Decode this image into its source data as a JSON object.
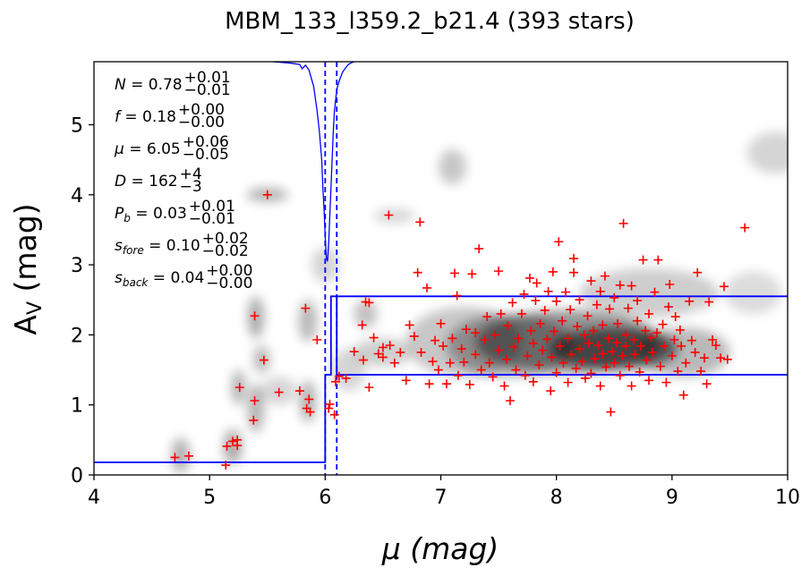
{
  "chart_data": {
    "type": "scatter",
    "title": "MBM_133_l359.2_b21.4 (393 stars)",
    "xlabel": "μ (mag)",
    "ylabel_main": "A",
    "ylabel_sub": "V",
    "ylabel_unit": " (mag)",
    "xlim": [
      4,
      10
    ],
    "ylim": [
      0,
      5.9
    ],
    "xticks": [
      "4",
      "5",
      "6",
      "7",
      "8",
      "9",
      "10"
    ],
    "yticks": [
      "0",
      "1",
      "2",
      "3",
      "4",
      "5"
    ],
    "annotations": [
      {
        "name": "N",
        "base": "N = 0.78",
        "sup": "+0.01",
        "sub": "−0.01"
      },
      {
        "name": "f",
        "base": "f = 0.18",
        "sup": "+0.00",
        "sub": "−0.00"
      },
      {
        "name": "mu",
        "base": "μ = 6.05",
        "sup": "+0.06",
        "sub": "−0.05"
      },
      {
        "name": "D",
        "base": "D = 162",
        "sup": "+4",
        "sub": "−3"
      },
      {
        "name": "Pb",
        "base": "P",
        "base_sub": "b",
        "base_rest": " = 0.03",
        "sup": "+0.01",
        "sub": "−0.01"
      },
      {
        "name": "sfore",
        "base": "s",
        "base_sub": "fore",
        "base_rest": " = 0.10",
        "sup": "+0.02",
        "sub": "−0.02"
      },
      {
        "name": "sback",
        "base": "s",
        "base_sub": "back",
        "base_rest": " = 0.04",
        "sup": "+0.00",
        "sub": "−0.00"
      }
    ],
    "model_line": {
      "color": "#0000ff",
      "x": [
        4.0,
        6.0,
        6.0,
        6.05,
        6.05,
        6.1,
        6.1,
        10.0
      ],
      "y": [
        0.18,
        0.18,
        1.43,
        1.43,
        2.55,
        2.55,
        1.43,
        1.43
      ],
      "upper_x": [
        6.1,
        10.0
      ],
      "upper_y": [
        2.55,
        2.55
      ]
    },
    "mu_bounds": {
      "color": "#0000ff",
      "x": [
        6.0,
        6.1
      ]
    },
    "posterior_curve": {
      "color": "#0000ff",
      "x": [
        5.55,
        5.7,
        5.78,
        5.8,
        5.83,
        5.86,
        5.9,
        5.93,
        5.95,
        5.97,
        5.98,
        5.99,
        6.0,
        6.01,
        6.02,
        6.03,
        6.04,
        6.05,
        6.06,
        6.07,
        6.08,
        6.09,
        6.1,
        6.12,
        6.15,
        6.18,
        6.2,
        6.22,
        6.25
      ],
      "y": [
        5.9,
        5.88,
        5.86,
        5.8,
        5.85,
        5.78,
        5.55,
        5.2,
        4.9,
        4.5,
        4.1,
        3.8,
        3.4,
        3.1,
        3.05,
        3.3,
        3.7,
        4.1,
        4.5,
        4.9,
        5.2,
        5.35,
        5.5,
        5.62,
        5.75,
        5.82,
        5.86,
        5.88,
        5.9
      ]
    },
    "density_blobs": [
      {
        "x": 8.5,
        "y": 1.8,
        "sx": 0.55,
        "sy": 0.3,
        "w": 1.0
      },
      {
        "x": 8.1,
        "y": 1.9,
        "sx": 0.8,
        "sy": 0.45,
        "w": 0.75
      },
      {
        "x": 7.6,
        "y": 1.85,
        "sx": 0.55,
        "sy": 0.45,
        "w": 0.55
      },
      {
        "x": 7.2,
        "y": 1.9,
        "sx": 0.5,
        "sy": 0.5,
        "w": 0.4
      },
      {
        "x": 9.1,
        "y": 1.75,
        "sx": 0.4,
        "sy": 0.35,
        "w": 0.5
      },
      {
        "x": 8.8,
        "y": 2.6,
        "sx": 0.6,
        "sy": 0.35,
        "w": 0.35
      },
      {
        "x": 9.7,
        "y": 2.6,
        "sx": 0.25,
        "sy": 0.3,
        "w": 0.25
      },
      {
        "x": 9.9,
        "y": 4.6,
        "sx": 0.25,
        "sy": 0.3,
        "w": 0.3
      },
      {
        "x": 7.1,
        "y": 4.4,
        "sx": 0.12,
        "sy": 0.25,
        "w": 0.4
      },
      {
        "x": 5.5,
        "y": 4.0,
        "sx": 0.18,
        "sy": 0.1,
        "w": 0.55
      },
      {
        "x": 6.6,
        "y": 3.7,
        "sx": 0.18,
        "sy": 0.1,
        "w": 0.3
      },
      {
        "x": 6.35,
        "y": 2.3,
        "sx": 0.1,
        "sy": 0.2,
        "w": 0.45
      },
      {
        "x": 6.5,
        "y": 1.75,
        "sx": 0.25,
        "sy": 0.2,
        "w": 0.35
      },
      {
        "x": 5.4,
        "y": 2.25,
        "sx": 0.07,
        "sy": 0.3,
        "w": 0.6
      },
      {
        "x": 5.45,
        "y": 1.65,
        "sx": 0.07,
        "sy": 0.2,
        "w": 0.5
      },
      {
        "x": 5.85,
        "y": 2.2,
        "sx": 0.08,
        "sy": 0.3,
        "w": 0.5
      },
      {
        "x": 5.25,
        "y": 1.25,
        "sx": 0.06,
        "sy": 0.25,
        "w": 0.55
      },
      {
        "x": 5.4,
        "y": 0.95,
        "sx": 0.07,
        "sy": 0.35,
        "w": 0.55
      },
      {
        "x": 5.85,
        "y": 1.05,
        "sx": 0.07,
        "sy": 0.3,
        "w": 0.55
      },
      {
        "x": 5.2,
        "y": 0.4,
        "sx": 0.08,
        "sy": 0.25,
        "w": 0.6
      },
      {
        "x": 4.75,
        "y": 0.28,
        "sx": 0.08,
        "sy": 0.25,
        "w": 0.55
      },
      {
        "x": 5.6,
        "y": 1.2,
        "sx": 0.15,
        "sy": 0.2,
        "w": 0.3
      },
      {
        "x": 6.2,
        "y": 1.5,
        "sx": 0.15,
        "sy": 0.3,
        "w": 0.3
      },
      {
        "x": 6.0,
        "y": 3.0,
        "sx": 0.12,
        "sy": 0.25,
        "w": 0.3
      }
    ],
    "stars_color": "#ff0000",
    "stars": [
      [
        4.7,
        0.25
      ],
      [
        4.82,
        0.27
      ],
      [
        5.14,
        0.14
      ],
      [
        5.15,
        0.41
      ],
      [
        5.2,
        0.48
      ],
      [
        5.24,
        0.42
      ],
      [
        5.26,
        1.25
      ],
      [
        5.24,
        0.5
      ],
      [
        5.38,
        0.78
      ],
      [
        5.39,
        1.06
      ],
      [
        5.39,
        2.27
      ],
      [
        5.47,
        1.64
      ],
      [
        5.5,
        4.0
      ],
      [
        5.6,
        1.18
      ],
      [
        5.78,
        1.2
      ],
      [
        5.83,
        2.38
      ],
      [
        5.86,
        1.08
      ],
      [
        5.84,
        0.95
      ],
      [
        5.87,
        0.9
      ],
      [
        5.93,
        1.93
      ],
      [
        6.03,
        0.95
      ],
      [
        6.04,
        1.01
      ],
      [
        6.08,
        0.86
      ],
      [
        6.09,
        1.33
      ],
      [
        6.12,
        1.41
      ],
      [
        6.18,
        1.38
      ],
      [
        6.25,
        1.76
      ],
      [
        6.33,
        1.64
      ],
      [
        6.32,
        2.14
      ],
      [
        6.35,
        2.47
      ],
      [
        6.38,
        2.46
      ],
      [
        6.38,
        1.25
      ],
      [
        6.42,
        1.96
      ],
      [
        6.46,
        1.73
      ],
      [
        6.5,
        1.82
      ],
      [
        6.5,
        1.68
      ],
      [
        6.55,
        3.71
      ],
      [
        6.56,
        1.85
      ],
      [
        6.6,
        1.6
      ],
      [
        6.65,
        1.75
      ],
      [
        6.7,
        1.35
      ],
      [
        6.73,
        2.14
      ],
      [
        6.77,
        1.98
      ],
      [
        6.8,
        2.89
      ],
      [
        6.82,
        3.61
      ],
      [
        6.83,
        1.75
      ],
      [
        6.88,
        2.67
      ],
      [
        6.9,
        1.3
      ],
      [
        6.93,
        1.62
      ],
      [
        6.95,
        1.92
      ],
      [
        6.98,
        1.5
      ],
      [
        7.0,
        2.16
      ],
      [
        7.02,
        1.84
      ],
      [
        7.05,
        1.3
      ],
      [
        7.08,
        1.6
      ],
      [
        7.1,
        1.95
      ],
      [
        7.12,
        2.88
      ],
      [
        7.14,
        2.56
      ],
      [
        7.15,
        1.42
      ],
      [
        7.18,
        1.8
      ],
      [
        7.2,
        1.61
      ],
      [
        7.22,
        2.08
      ],
      [
        7.25,
        1.29
      ],
      [
        7.27,
        2.87
      ],
      [
        7.3,
        1.72
      ],
      [
        7.3,
        2.03
      ],
      [
        7.33,
        3.23
      ],
      [
        7.35,
        1.5
      ],
      [
        7.38,
        1.93
      ],
      [
        7.4,
        2.26
      ],
      [
        7.42,
        1.6
      ],
      [
        7.45,
        1.4
      ],
      [
        7.47,
        2.0
      ],
      [
        7.5,
        1.78
      ],
      [
        7.5,
        2.91
      ],
      [
        7.52,
        2.3
      ],
      [
        7.55,
        1.27
      ],
      [
        7.57,
        1.65
      ],
      [
        7.58,
        2.13
      ],
      [
        7.6,
        1.06
      ],
      [
        7.62,
        2.46
      ],
      [
        7.63,
        1.83
      ],
      [
        7.65,
        1.5
      ],
      [
        7.67,
        1.95
      ],
      [
        7.7,
        2.3
      ],
      [
        7.72,
        2.58
      ],
      [
        7.73,
        1.42
      ],
      [
        7.75,
        1.7
      ],
      [
        7.77,
        2.81
      ],
      [
        7.78,
        2.06
      ],
      [
        7.8,
        1.33
      ],
      [
        7.8,
        1.88
      ],
      [
        7.82,
        2.49
      ],
      [
        7.83,
        2.74
      ],
      [
        7.85,
        1.57
      ],
      [
        7.86,
        2.16
      ],
      [
        7.88,
        1.78
      ],
      [
        7.9,
        2.35
      ],
      [
        7.92,
        1.94
      ],
      [
        7.93,
        2.62
      ],
      [
        7.95,
        1.2
      ],
      [
        7.96,
        1.68
      ],
      [
        7.97,
        2.9
      ],
      [
        7.98,
        2.05
      ],
      [
        8.0,
        1.46
      ],
      [
        8.0,
        2.48
      ],
      [
        8.02,
        3.33
      ],
      [
        8.03,
        1.84
      ],
      [
        8.05,
        2.2
      ],
      [
        8.06,
        1.6
      ],
      [
        8.08,
        2.61
      ],
      [
        8.1,
        1.32
      ],
      [
        8.1,
        1.95
      ],
      [
        8.12,
        2.36
      ],
      [
        8.13,
        1.72
      ],
      [
        8.15,
        2.89
      ],
      [
        8.15,
        3.09
      ],
      [
        8.17,
        1.52
      ],
      [
        8.18,
        2.12
      ],
      [
        8.2,
        1.8
      ],
      [
        8.2,
        2.5
      ],
      [
        8.22,
        1.62
      ],
      [
        8.24,
        2.0
      ],
      [
        8.25,
        1.38
      ],
      [
        8.27,
        2.27
      ],
      [
        8.28,
        1.88
      ],
      [
        8.3,
        1.45
      ],
      [
        8.3,
        2.77
      ],
      [
        8.32,
        2.06
      ],
      [
        8.33,
        1.66
      ],
      [
        8.35,
        2.43
      ],
      [
        8.36,
        1.85
      ],
      [
        8.38,
        2.62
      ],
      [
        8.38,
        1.27
      ],
      [
        8.4,
        1.73
      ],
      [
        8.4,
        2.14
      ],
      [
        8.42,
        2.84
      ],
      [
        8.43,
        1.54
      ],
      [
        8.45,
        1.95
      ],
      [
        8.46,
        2.37
      ],
      [
        8.47,
        0.9
      ],
      [
        8.48,
        1.76
      ],
      [
        8.5,
        2.53
      ],
      [
        8.5,
        1.6
      ],
      [
        8.52,
        1.89
      ],
      [
        8.53,
        2.16
      ],
      [
        8.55,
        2.71
      ],
      [
        8.55,
        1.42
      ],
      [
        8.57,
        1.7
      ],
      [
        8.58,
        3.59
      ],
      [
        8.6,
        2.0
      ],
      [
        8.6,
        1.84
      ],
      [
        8.62,
        2.38
      ],
      [
        8.63,
        1.55
      ],
      [
        8.65,
        1.27
      ],
      [
        8.65,
        2.7
      ],
      [
        8.67,
        1.93
      ],
      [
        8.68,
        1.72
      ],
      [
        8.7,
        2.2
      ],
      [
        8.7,
        2.49
      ],
      [
        8.72,
        1.47
      ],
      [
        8.73,
        1.84
      ],
      [
        8.75,
        3.07
      ],
      [
        8.77,
        2.06
      ],
      [
        8.78,
        1.64
      ],
      [
        8.8,
        2.3
      ],
      [
        8.8,
        1.35
      ],
      [
        8.82,
        1.96
      ],
      [
        8.83,
        1.75
      ],
      [
        8.85,
        2.61
      ],
      [
        8.87,
        2.03
      ],
      [
        8.88,
        3.07
      ],
      [
        8.9,
        1.55
      ],
      [
        8.92,
        2.15
      ],
      [
        8.93,
        1.84
      ],
      [
        8.95,
        1.32
      ],
      [
        8.97,
        2.4
      ],
      [
        8.98,
        2.72
      ],
      [
        9.0,
        1.7
      ],
      [
        9.02,
        1.93
      ],
      [
        9.03,
        2.26
      ],
      [
        9.05,
        1.48
      ],
      [
        9.07,
        2.07
      ],
      [
        9.08,
        1.84
      ],
      [
        9.1,
        1.14
      ],
      [
        9.12,
        1.6
      ],
      [
        9.15,
        2.48
      ],
      [
        9.17,
        1.92
      ],
      [
        9.2,
        1.75
      ],
      [
        9.22,
        2.89
      ],
      [
        9.25,
        1.48
      ],
      [
        9.28,
        1.67
      ],
      [
        9.3,
        1.3
      ],
      [
        9.32,
        2.47
      ],
      [
        9.35,
        1.93
      ],
      [
        9.38,
        1.85
      ],
      [
        9.42,
        1.67
      ],
      [
        9.45,
        2.69
      ],
      [
        9.48,
        1.65
      ],
      [
        9.63,
        3.53
      ]
    ]
  }
}
